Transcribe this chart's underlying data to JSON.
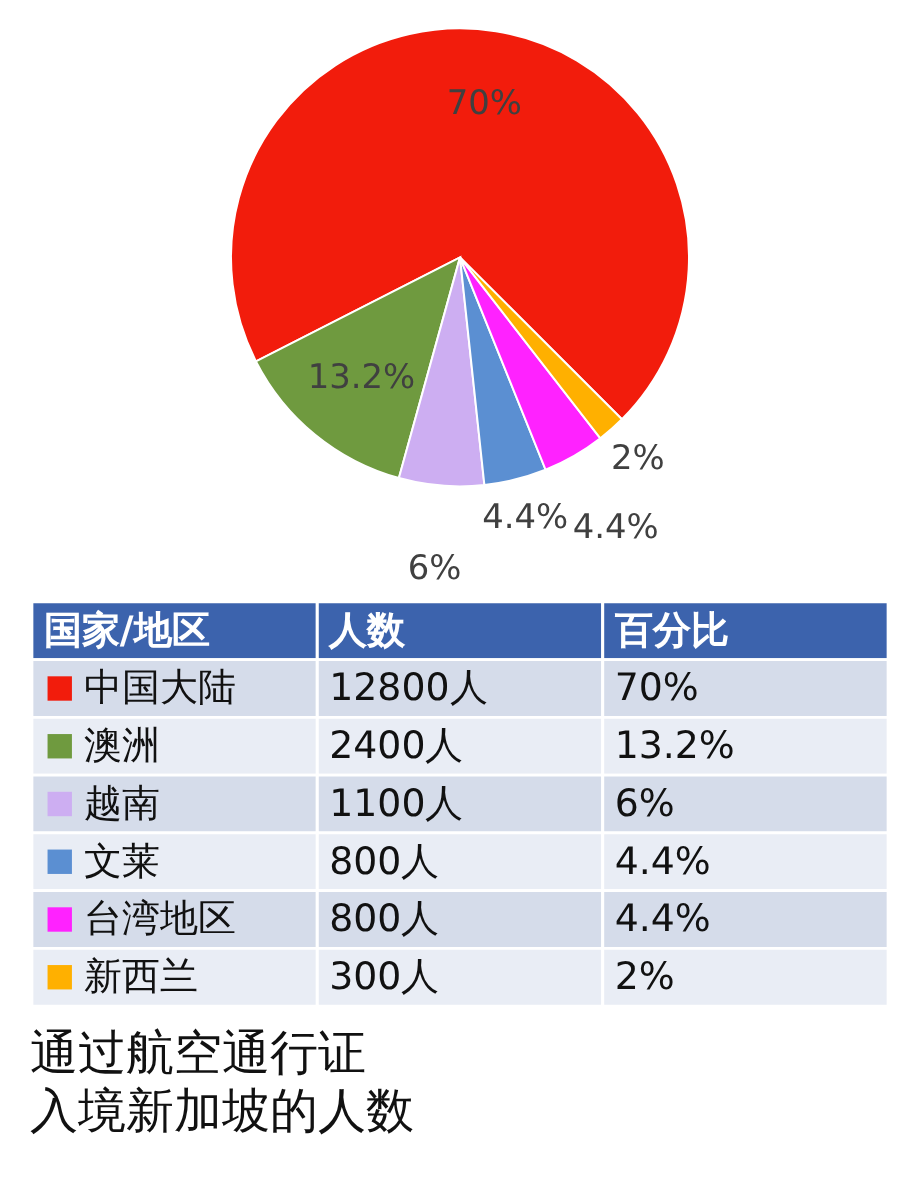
{
  "chart_data": {
    "type": "pie",
    "title": "通过航空通行证入境新加坡的人数",
    "categories": [
      "中国大陆",
      "澳洲",
      "越南",
      "文莱",
      "台湾地区",
      "新西兰"
    ],
    "values": [
      70,
      13.2,
      6,
      4.4,
      4.4,
      2
    ],
    "colors": [
      "#f21c0c",
      "#6f9a3f",
      "#cdaef2",
      "#5b8fd2",
      "#ff22ff",
      "#ffb000"
    ],
    "value_labels": [
      "70%",
      "13.2%",
      "6%",
      "4.4%",
      "4.4%",
      "2%"
    ],
    "legend": "bottom",
    "annotations": [
      "国家/地区",
      "人数",
      "百分比",
      "12800人",
      "2400人",
      "1100人",
      "800人",
      "800人",
      "300人"
    ]
  }
}
